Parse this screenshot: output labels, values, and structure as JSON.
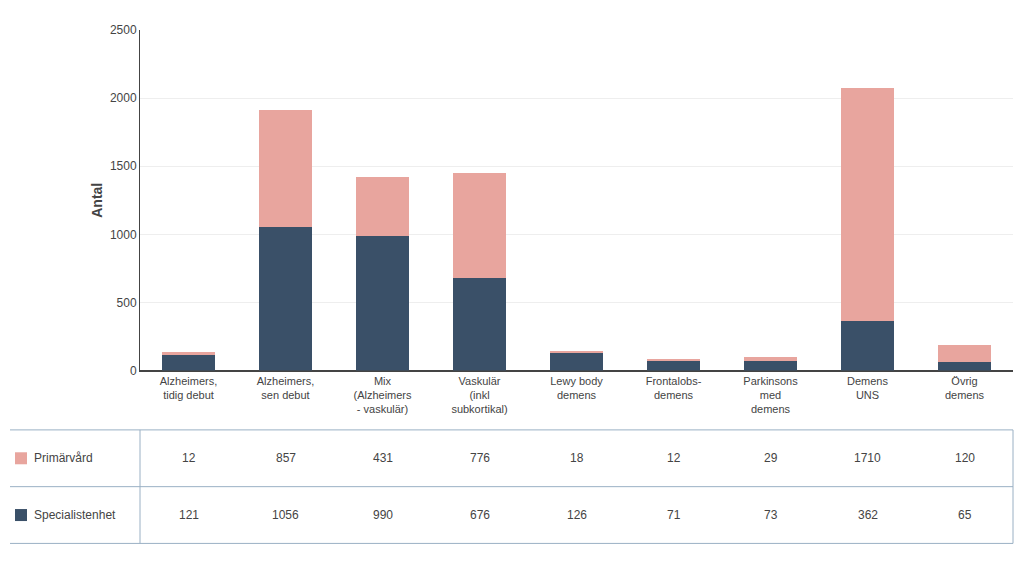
{
  "chart_data": {
    "type": "bar",
    "stacked": true,
    "categories": [
      "Alzheimers,\ntidig debut",
      "Alzheimers,\nsen debut",
      "Mix\n(Alzheimers\n- vaskulär)",
      "Vaskulär\n(inkl\nsubkortikal)",
      "Lewy body\ndemens",
      "Frontalobs-\ndemens",
      "Parkinsons\nmed\ndemens",
      "Demens\nUNS",
      "Övrig\ndemens"
    ],
    "series": [
      {
        "name": "Specialistenhet",
        "color": "#3a5068",
        "values": [
          121,
          1056,
          990,
          676,
          126,
          71,
          73,
          362,
          65
        ]
      },
      {
        "name": "Primärvård",
        "color": "#e8a59e",
        "values": [
          12,
          857,
          431,
          776,
          18,
          12,
          29,
          1710,
          120
        ]
      }
    ],
    "ylabel": "Antal",
    "ylim": [
      0,
      2500
    ],
    "yticks": [
      0,
      500,
      1000,
      1500,
      2000,
      2500
    ],
    "grid": true
  }
}
